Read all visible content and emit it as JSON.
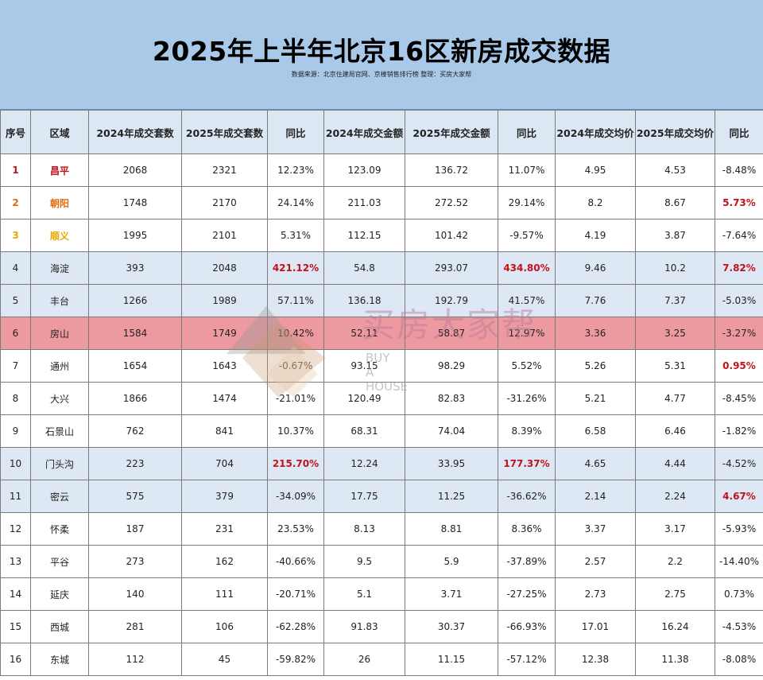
{
  "header": {
    "title": "2025年上半年北京16区新房成交数据",
    "source": "数据来源：北京住建局官网、京楼销售排行榜 整理：买房大家帮"
  },
  "table": {
    "columns": [
      "序号",
      "区域",
      "2024年成交套数",
      "2025年成交套数",
      "同比",
      "2024年成交金额",
      "2025年成交金额",
      "同比",
      "2024年成交均价",
      "2025年成交均价",
      "同比"
    ],
    "rows": [
      [
        "1",
        "昌平",
        "2068",
        "2321",
        "12.23%",
        "123.09",
        "136.72",
        "11.07%",
        "4.95",
        "4.53",
        "-8.48%"
      ],
      [
        "2",
        "朝阳",
        "1748",
        "2170",
        "24.14%",
        "211.03",
        "272.52",
        "29.14%",
        "8.2",
        "8.67",
        "5.73%"
      ],
      [
        "3",
        "顺义",
        "1995",
        "2101",
        "5.31%",
        "112.15",
        "101.42",
        "-9.57%",
        "4.19",
        "3.87",
        "-7.64%"
      ],
      [
        "4",
        "海淀",
        "393",
        "2048",
        "421.12%",
        "54.8",
        "293.07",
        "434.80%",
        "9.46",
        "10.2",
        "7.82%"
      ],
      [
        "5",
        "丰台",
        "1266",
        "1989",
        "57.11%",
        "136.18",
        "192.79",
        "41.57%",
        "7.76",
        "7.37",
        "-5.03%"
      ],
      [
        "6",
        "房山",
        "1584",
        "1749",
        "10.42%",
        "52.11",
        "58.87",
        "12.97%",
        "3.36",
        "3.25",
        "-3.27%"
      ],
      [
        "7",
        "通州",
        "1654",
        "1643",
        "-0.67%",
        "93.15",
        "98.29",
        "5.52%",
        "5.26",
        "5.31",
        "0.95%"
      ],
      [
        "8",
        "大兴",
        "1866",
        "1474",
        "-21.01%",
        "120.49",
        "82.83",
        "-31.26%",
        "5.21",
        "4.77",
        "-8.45%"
      ],
      [
        "9",
        "石景山",
        "762",
        "841",
        "10.37%",
        "68.31",
        "74.04",
        "8.39%",
        "6.58",
        "6.46",
        "-1.82%"
      ],
      [
        "10",
        "门头沟",
        "223",
        "704",
        "215.70%",
        "12.24",
        "33.95",
        "177.37%",
        "4.65",
        "4.44",
        "-4.52%"
      ],
      [
        "11",
        "密云",
        "575",
        "379",
        "-34.09%",
        "17.75",
        "11.25",
        "-36.62%",
        "2.14",
        "2.24",
        "4.67%"
      ],
      [
        "12",
        "怀柔",
        "187",
        "231",
        "23.53%",
        "8.13",
        "8.81",
        "8.36%",
        "3.37",
        "3.17",
        "-5.93%"
      ],
      [
        "13",
        "平谷",
        "273",
        "162",
        "-40.66%",
        "9.5",
        "5.9",
        "-37.89%",
        "2.57",
        "2.2",
        "-14.40%"
      ],
      [
        "14",
        "延庆",
        "140",
        "111",
        "-20.71%",
        "5.1",
        "3.71",
        "-27.25%",
        "2.73",
        "2.75",
        "0.73%"
      ],
      [
        "15",
        "西城",
        "281",
        "106",
        "-62.28%",
        "91.83",
        "30.37",
        "-66.93%",
        "17.01",
        "16.24",
        "-4.53%"
      ],
      [
        "16",
        "东城",
        "112",
        "45",
        "-59.82%",
        "26",
        "11.15",
        "-57.12%",
        "12.38",
        "11.38",
        "-8.08%"
      ]
    ],
    "row_bands": [
      "",
      "",
      "",
      "blue",
      "blue",
      "red",
      "",
      "",
      "",
      "blue",
      "blue",
      "",
      "",
      "",
      "",
      ""
    ],
    "highlights": {
      "0": {
        "0": "red",
        "1": "red"
      },
      "1": {
        "0": "orange",
        "1": "orange",
        "10": "red"
      },
      "2": {
        "0": "gold",
        "1": "gold"
      },
      "3": {
        "4": "red",
        "7": "red",
        "10": "red"
      },
      "6": {
        "10": "red"
      },
      "9": {
        "4": "red",
        "7": "red"
      },
      "10": {
        "10": "red"
      }
    },
    "colors": {
      "header_bg": "#a9c9e8",
      "band_blue": "#dde8f4",
      "band_red": "#ec9aa0",
      "highlight_red": "#c0121a",
      "highlight_orange": "#e06c10",
      "highlight_gold": "#e5a800"
    }
  },
  "watermark": {
    "text_cn": "买房大家帮",
    "text_en_lines": [
      "BUY",
      "A",
      "HOUSE"
    ],
    "icon": "house-logo-icon"
  }
}
